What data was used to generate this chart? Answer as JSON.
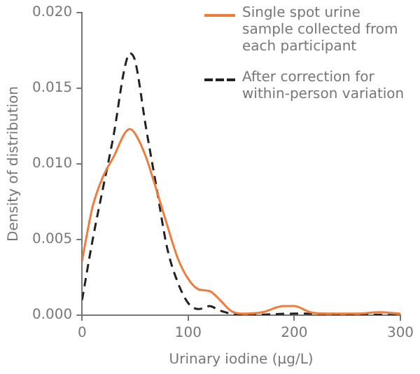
{
  "chart_data": {
    "type": "line",
    "xlabel": "Urinary iodine (µg/L)",
    "ylabel": "Density of distribution",
    "xlim": [
      0,
      300
    ],
    "xticks": [
      0,
      100,
      200,
      300
    ],
    "ylim": [
      0,
      0.02
    ],
    "yticks": [
      {
        "value": 0,
        "label": "0.000"
      },
      0.005,
      {
        "value": 0.01,
        "label": "0.010"
      },
      0.015,
      {
        "value": 0.02,
        "label": "0.020"
      }
    ],
    "grid": false,
    "legend": "top right",
    "marker": "none",
    "series": [
      {
        "name": "Single spot urine sample collected from each participant",
        "color": "#f07c3c",
        "line_style": "solid",
        "x": [
          0,
          5,
          10,
          20,
          30,
          40,
          45,
          50,
          60,
          70,
          80,
          90,
          100,
          110,
          120,
          130,
          140,
          150,
          170,
          190,
          200,
          215,
          230,
          260,
          280,
          300
        ],
        "values": [
          0.0036,
          0.0055,
          0.0072,
          0.0092,
          0.0105,
          0.012,
          0.0123,
          0.012,
          0.0105,
          0.0083,
          0.006,
          0.0038,
          0.0024,
          0.0017,
          0.0016,
          0.001,
          0.0003,
          0.0001,
          0.0002,
          0.0006,
          0.0006,
          0.0002,
          0.0001,
          0.0001,
          0.0002,
          0.0001
        ]
      },
      {
        "name": "After correction for within-person variation",
        "color": "#222222",
        "line_style": "dashed",
        "x": [
          0,
          10,
          20,
          30,
          40,
          45,
          50,
          60,
          70,
          80,
          90,
          100,
          110,
          120,
          130,
          150,
          200,
          300
        ],
        "values": [
          0.001,
          0.005,
          0.0085,
          0.012,
          0.0163,
          0.0173,
          0.0168,
          0.0125,
          0.0085,
          0.0045,
          0.0022,
          0.0008,
          0.0004,
          0.0006,
          0.0003,
          0,
          0.0001,
          0
        ]
      }
    ]
  }
}
